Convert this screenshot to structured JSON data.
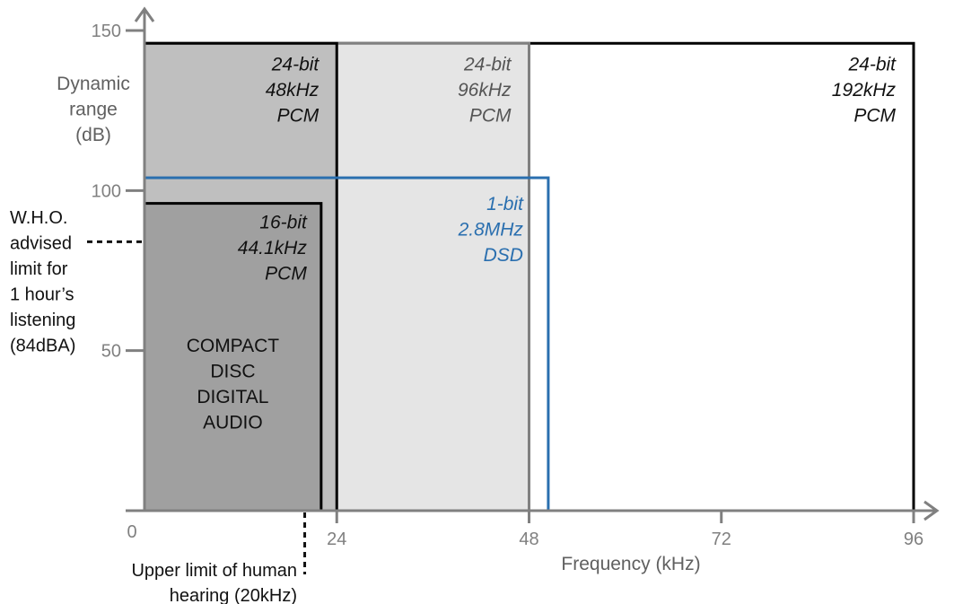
{
  "chart_data": {
    "type": "area",
    "title": "",
    "xlabel": "Frequency (kHz)",
    "ylabel": [
      "Dynamic",
      "range",
      "(dB)"
    ],
    "xlim": [
      0,
      96
    ],
    "ylim": [
      0,
      150
    ],
    "x_ticks": [
      0,
      24,
      48,
      72,
      96
    ],
    "y_ticks": [
      50,
      100,
      150
    ],
    "regions": [
      {
        "name": "24-bit 192kHz PCM",
        "x_max": 96,
        "y_max": 146,
        "fill": "#ffffff",
        "stroke": "#000000",
        "label_color": "#111111",
        "label": [
          "24-bit",
          "192kHz",
          "PCM"
        ]
      },
      {
        "name": "24-bit 96kHz PCM",
        "x_max": 48,
        "y_max": 146,
        "fill": "#e5e5e5",
        "stroke": "#808080",
        "label_color": "#555555",
        "label": [
          "24-bit",
          "96kHz",
          "PCM"
        ]
      },
      {
        "name": "24-bit 48kHz PCM",
        "x_max": 24,
        "y_max": 146,
        "fill": "#bfbfbf",
        "stroke": "#000000",
        "label_color": "#111111",
        "label": [
          "24-bit",
          "48kHz",
          "PCM"
        ]
      },
      {
        "name": "1-bit 2.8MHz DSD",
        "x_max": 50.4,
        "y_max": 104,
        "fill": "none",
        "stroke": "#2a6faf",
        "label_color": "#2a6faf",
        "label": [
          "1-bit",
          "2.8MHz",
          "DSD"
        ]
      },
      {
        "name": "16-bit 44.1kHz PCM",
        "x_max": 22.05,
        "y_max": 96,
        "fill": "#a0a0a0",
        "stroke": "#000000",
        "label_color": "#111111",
        "label": [
          "16-bit",
          "44.1kHz",
          "PCM"
        ]
      }
    ],
    "cd_label": [
      "COMPACT",
      "DISC",
      "DIGITAL",
      "AUDIO"
    ],
    "annotations": [
      {
        "name": "who-limit",
        "y": 84,
        "lines": [
          "W.H.O.",
          "advised",
          "limit for",
          "1 hour’s",
          "listening",
          "(84dBA)"
        ]
      },
      {
        "name": "hearing-limit",
        "x": 20,
        "lines": [
          "Upper limit of human",
          "hearing (20kHz)"
        ]
      }
    ]
  },
  "colors": {
    "axis": "#808080",
    "dsd": "#2a6faf"
  }
}
